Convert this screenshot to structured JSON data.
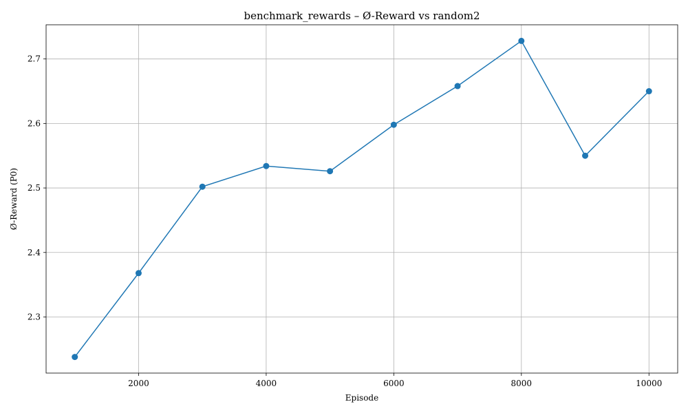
{
  "chart_data": {
    "type": "line",
    "title": "benchmark_rewards – Ø-Reward vs random2",
    "xlabel": "Episode",
    "ylabel": "Ø-Reward (P0)",
    "xlim": [
      550,
      10450
    ],
    "ylim": [
      2.213,
      2.753
    ],
    "xticks": [
      2000,
      4000,
      6000,
      8000,
      10000
    ],
    "yticks": [
      2.3,
      2.4,
      2.5,
      2.6,
      2.7
    ],
    "xtick_labels": [
      "2000",
      "4000",
      "6000",
      "8000",
      "10000"
    ],
    "ytick_labels": [
      "2.3",
      "2.4",
      "2.5",
      "2.6",
      "2.7"
    ],
    "grid": true,
    "series": [
      {
        "color": "#1f77b4",
        "marker": "circle",
        "x": [
          1000,
          2000,
          3000,
          4000,
          5000,
          6000,
          7000,
          8000,
          9000,
          10000
        ],
        "y": [
          2.238,
          2.368,
          2.502,
          2.534,
          2.526,
          2.598,
          2.658,
          2.728,
          2.55,
          2.65
        ]
      }
    ]
  }
}
